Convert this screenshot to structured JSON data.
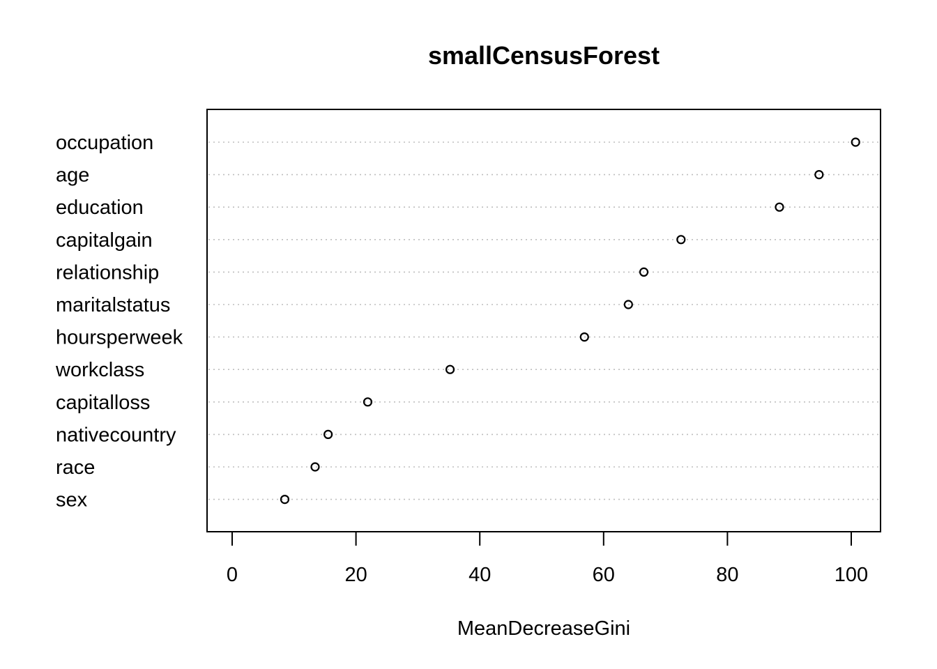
{
  "chart_data": {
    "type": "scatter",
    "title": "smallCensusForest",
    "xlabel": "MeanDecreaseGini",
    "ylabel": "",
    "xlim": [
      -4,
      105
    ],
    "x_ticks": [
      0,
      20,
      40,
      60,
      80,
      100
    ],
    "grid": "dotted horizontal guide lines",
    "categories": [
      "occupation",
      "age",
      "education",
      "capitalgain",
      "relationship",
      "maritalstatus",
      "hoursperweek",
      "workclass",
      "capitalloss",
      "nativecountry",
      "race",
      "sex"
    ],
    "values": [
      100.7,
      94.8,
      88.4,
      72.5,
      66.5,
      64.0,
      56.9,
      35.2,
      21.9,
      15.5,
      13.4,
      8.5
    ],
    "marker": "open-circle",
    "colors": {
      "points": "#000000",
      "guides": "#bebebe",
      "background": "#ffffff"
    }
  }
}
